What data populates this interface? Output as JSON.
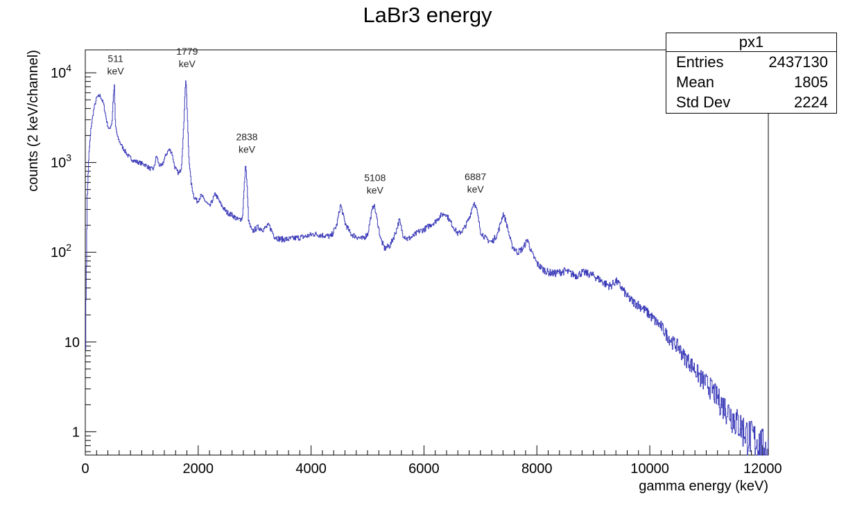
{
  "chart_data": {
    "type": "line",
    "title": "LaBr3 energy",
    "xlabel": "gamma energy (keV)",
    "ylabel": "counts (2 keV/channel)",
    "xlim": [
      0,
      12100
    ],
    "ylim": [
      0.55,
      18000
    ],
    "y_scale": "log",
    "grid": false,
    "series_color": "#3a3ab8",
    "x_ticks": [
      0,
      2000,
      4000,
      6000,
      8000,
      10000,
      12000
    ],
    "x_tick_labels": [
      "0",
      "2000",
      "4000",
      "6000",
      "8000",
      "10000",
      "12000"
    ],
    "y_ticks": [
      1,
      10,
      100,
      1000,
      10000
    ],
    "y_tick_labels": [
      {
        "value": 1,
        "base": "1",
        "exp": ""
      },
      {
        "value": 10,
        "base": "10",
        "exp": ""
      },
      {
        "value": 100,
        "base": "10",
        "exp": "2"
      },
      {
        "value": 1000,
        "base": "10",
        "exp": "3"
      },
      {
        "value": 10000,
        "base": "10",
        "exp": "4"
      }
    ],
    "annotations": [
      {
        "energy": 511,
        "lines": [
          "511",
          "keV"
        ]
      },
      {
        "energy": 1779,
        "lines": [
          "1779",
          "keV"
        ]
      },
      {
        "energy": 2838,
        "lines": [
          "2838",
          "keV"
        ]
      },
      {
        "energy": 5108,
        "lines": [
          "5108",
          "keV"
        ]
      },
      {
        "energy": 6887,
        "lines": [
          "6887",
          "keV"
        ]
      }
    ],
    "series": [
      {
        "points": [
          [
            0,
            10
          ],
          [
            30,
            400
          ],
          [
            60,
            1200
          ],
          [
            100,
            2500
          ],
          [
            150,
            4000
          ],
          [
            200,
            5300
          ],
          [
            260,
            5600
          ],
          [
            320,
            4500
          ],
          [
            380,
            2800
          ],
          [
            420,
            2300
          ],
          [
            470,
            2800
          ],
          [
            490,
            5000
          ],
          [
            511,
            7500
          ],
          [
            530,
            2600
          ],
          [
            570,
            1900
          ],
          [
            650,
            1500
          ],
          [
            750,
            1200
          ],
          [
            850,
            1050
          ],
          [
            950,
            1000
          ],
          [
            1050,
            950
          ],
          [
            1150,
            850
          ],
          [
            1210,
            850
          ],
          [
            1260,
            1200
          ],
          [
            1300,
            950
          ],
          [
            1350,
            900
          ],
          [
            1420,
            1200
          ],
          [
            1480,
            1400
          ],
          [
            1530,
            1300
          ],
          [
            1580,
            900
          ],
          [
            1620,
            800
          ],
          [
            1660,
            750
          ],
          [
            1700,
            900
          ],
          [
            1740,
            2500
          ],
          [
            1760,
            5500
          ],
          [
            1779,
            9000
          ],
          [
            1800,
            4000
          ],
          [
            1830,
            1200
          ],
          [
            1870,
            600
          ],
          [
            1920,
            420
          ],
          [
            1980,
            370
          ],
          [
            2050,
            430
          ],
          [
            2100,
            390
          ],
          [
            2200,
            320
          ],
          [
            2300,
            450
          ],
          [
            2400,
            340
          ],
          [
            2500,
            280
          ],
          [
            2600,
            260
          ],
          [
            2700,
            230
          ],
          [
            2780,
            240
          ],
          [
            2810,
            500
          ],
          [
            2838,
            1000
          ],
          [
            2860,
            600
          ],
          [
            2890,
            220
          ],
          [
            2950,
            170
          ],
          [
            3050,
            190
          ],
          [
            3150,
            180
          ],
          [
            3250,
            200
          ],
          [
            3350,
            150
          ],
          [
            3450,
            140
          ],
          [
            3600,
            140
          ],
          [
            3750,
            145
          ],
          [
            3900,
            150
          ],
          [
            4050,
            160
          ],
          [
            4200,
            155
          ],
          [
            4350,
            150
          ],
          [
            4450,
            200
          ],
          [
            4520,
            340
          ],
          [
            4600,
            210
          ],
          [
            4700,
            160
          ],
          [
            4800,
            150
          ],
          [
            4900,
            140
          ],
          [
            5000,
            160
          ],
          [
            5060,
            260
          ],
          [
            5108,
            350
          ],
          [
            5150,
            260
          ],
          [
            5230,
            140
          ],
          [
            5300,
            110
          ],
          [
            5400,
            120
          ],
          [
            5500,
            170
          ],
          [
            5560,
            230
          ],
          [
            5620,
            160
          ],
          [
            5700,
            140
          ],
          [
            5800,
            150
          ],
          [
            5900,
            170
          ],
          [
            6000,
            180
          ],
          [
            6100,
            200
          ],
          [
            6200,
            220
          ],
          [
            6300,
            260
          ],
          [
            6380,
            270
          ],
          [
            6430,
            240
          ],
          [
            6500,
            200
          ],
          [
            6600,
            160
          ],
          [
            6700,
            180
          ],
          [
            6800,
            240
          ],
          [
            6860,
            330
          ],
          [
            6887,
            360
          ],
          [
            6930,
            300
          ],
          [
            7000,
            170
          ],
          [
            7100,
            140
          ],
          [
            7200,
            130
          ],
          [
            7300,
            160
          ],
          [
            7400,
            270
          ],
          [
            7450,
            220
          ],
          [
            7550,
            120
          ],
          [
            7650,
            100
          ],
          [
            7750,
            110
          ],
          [
            7830,
            140
          ],
          [
            7900,
            100
          ],
          [
            8000,
            75
          ],
          [
            8100,
            65
          ],
          [
            8200,
            60
          ],
          [
            8300,
            58
          ],
          [
            8400,
            60
          ],
          [
            8500,
            62
          ],
          [
            8600,
            58
          ],
          [
            8700,
            55
          ],
          [
            8800,
            60
          ],
          [
            8900,
            58
          ],
          [
            9000,
            55
          ],
          [
            9100,
            50
          ],
          [
            9200,
            45
          ],
          [
            9300,
            42
          ],
          [
            9400,
            48
          ],
          [
            9500,
            40
          ],
          [
            9600,
            32
          ],
          [
            9700,
            28
          ],
          [
            9800,
            26
          ],
          [
            9900,
            23
          ],
          [
            10000,
            20
          ],
          [
            10100,
            17
          ],
          [
            10200,
            15
          ],
          [
            10300,
            12
          ],
          [
            10400,
            10
          ],
          [
            10500,
            9
          ],
          [
            10600,
            7
          ],
          [
            10700,
            6
          ],
          [
            10800,
            5
          ],
          [
            10900,
            4
          ],
          [
            11000,
            3.5
          ],
          [
            11100,
            3
          ],
          [
            11200,
            2.4
          ],
          [
            11300,
            2
          ],
          [
            11400,
            1.7
          ],
          [
            11500,
            1.4
          ],
          [
            11600,
            1.2
          ],
          [
            11700,
            1.0
          ],
          [
            11800,
            0.9
          ],
          [
            11900,
            0.8
          ],
          [
            12000,
            0.7
          ],
          [
            12100,
            0.6
          ]
        ]
      }
    ]
  },
  "stats": {
    "name": "px1",
    "rows": [
      {
        "label": "Entries",
        "value": "2437130"
      },
      {
        "label": "Mean",
        "value": "1805"
      },
      {
        "label": "Std Dev",
        "value": "2224"
      }
    ]
  }
}
